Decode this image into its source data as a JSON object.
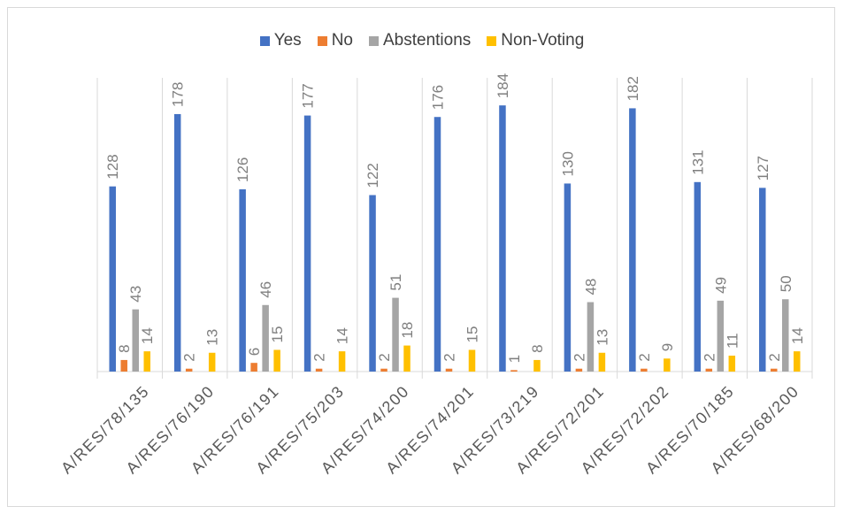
{
  "chart_data": {
    "type": "bar",
    "categories": [
      "A/RES/78/135",
      "A/RES/76/190",
      "A/RES/76/191",
      "A/RES/75/203",
      "A/RES/74/200",
      "A/RES/74/201",
      "A/RES/73/219",
      "A/RES/72/201",
      "A/RES/72/202",
      "A/RES/70/185",
      "A/RES/68/200"
    ],
    "series": [
      {
        "name": "Yes",
        "color": "#4472c4",
        "values": [
          128,
          178,
          126,
          177,
          122,
          176,
          184,
          130,
          182,
          131,
          127
        ]
      },
      {
        "name": "No",
        "color": "#ed7d31",
        "values": [
          8,
          2,
          6,
          2,
          2,
          2,
          1,
          2,
          2,
          2,
          2
        ]
      },
      {
        "name": "Abstentions",
        "color": "#a5a5a5",
        "values": [
          43,
          null,
          46,
          null,
          51,
          null,
          null,
          48,
          null,
          49,
          50
        ]
      },
      {
        "name": "Non-Voting",
        "color": "#ffc000",
        "values": [
          14,
          13,
          15,
          14,
          18,
          15,
          8,
          13,
          9,
          11,
          14
        ]
      }
    ],
    "ylim": [
      0,
      200
    ],
    "legend_position": "top",
    "gridlines": "vertical-category-separators",
    "data_labels": true
  }
}
